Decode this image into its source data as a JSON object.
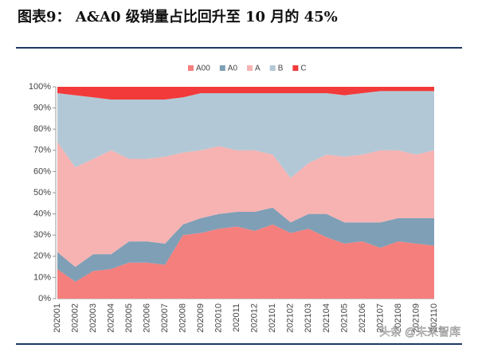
{
  "chart_data": {
    "type": "stacked_area",
    "title": "图表9： A&A0 级销量占比回升至 10 月的 45%",
    "watermark": "头条 @未来智库",
    "categories": [
      "202001",
      "202002",
      "202003",
      "202004",
      "202005",
      "202006",
      "202007",
      "202008",
      "202009",
      "202010",
      "202011",
      "202012",
      "202101",
      "202102",
      "202103",
      "202104",
      "202105",
      "202106",
      "202107",
      "202108",
      "202109",
      "202110"
    ],
    "series": [
      {
        "name": "A00",
        "color": "#f47f7d",
        "values": [
          14,
          8,
          13,
          14,
          17,
          17,
          16,
          30,
          31,
          33,
          34,
          32,
          35,
          31,
          33,
          29,
          26,
          27,
          24,
          27,
          26,
          25
        ]
      },
      {
        "name": "A0",
        "color": "#7f9fb6",
        "values": [
          8,
          7,
          8,
          7,
          10,
          10,
          10,
          5,
          7,
          7,
          7,
          9,
          8,
          5,
          7,
          11,
          10,
          9,
          12,
          11,
          12,
          13
        ]
      },
      {
        "name": "A",
        "color": "#f6b3b2",
        "values": [
          52,
          47,
          45,
          49,
          39,
          39,
          41,
          34,
          32,
          32,
          29,
          29,
          25,
          21,
          24,
          28,
          31,
          32,
          34,
          32,
          30,
          32
        ]
      },
      {
        "name": "B",
        "color": "#b3c8d6",
        "values": [
          23,
          34,
          29,
          24,
          28,
          28,
          27,
          26,
          27,
          25,
          27,
          27,
          29,
          40,
          33,
          29,
          29,
          29,
          28,
          28,
          30,
          28
        ]
      },
      {
        "name": "C",
        "color": "#f23a3a",
        "values": [
          3,
          4,
          5,
          6,
          6,
          6,
          6,
          5,
          3,
          3,
          3,
          3,
          3,
          3,
          3,
          3,
          4,
          3,
          2,
          2,
          2,
          2
        ]
      }
    ],
    "ylim": [
      0,
      100
    ],
    "yticks": [
      {
        "value": 0,
        "label": "0%"
      },
      {
        "value": 10,
        "label": "10%"
      },
      {
        "value": 20,
        "label": "20%"
      },
      {
        "value": 30,
        "label": "30%"
      },
      {
        "value": 40,
        "label": "40%"
      },
      {
        "value": 50,
        "label": "50%"
      },
      {
        "value": 60,
        "label": "60%"
      },
      {
        "value": 70,
        "label": "70%"
      },
      {
        "value": 80,
        "label": "80%"
      },
      {
        "value": 90,
        "label": "90%"
      },
      {
        "value": 100,
        "label": "100%"
      }
    ]
  }
}
